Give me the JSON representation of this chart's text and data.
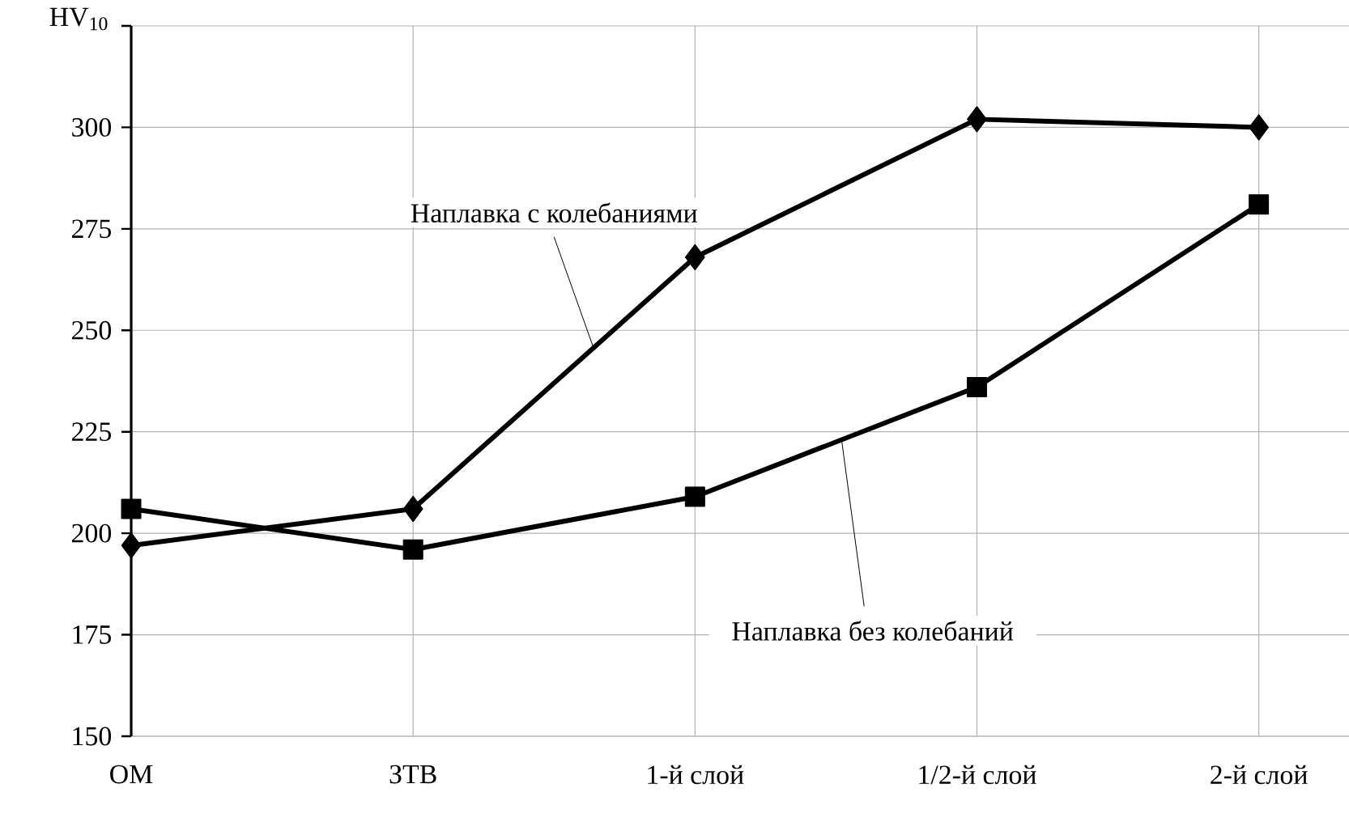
{
  "chart_data": {
    "type": "line",
    "ylabel": "HV$_{10}$",
    "categories": [
      "ОМ",
      "ЗТВ",
      "1-й слой",
      "1/2-й слой",
      "2-й слой"
    ],
    "series": [
      {
        "name": "Наплавка с колебаниями",
        "color": "#000000",
        "marker": "diamond",
        "values": [
          197,
          206,
          268,
          302,
          300
        ]
      },
      {
        "name": "Наплавка без колебаний",
        "color": "#000000",
        "marker": "square",
        "values": [
          206,
          196,
          209,
          236,
          281
        ]
      }
    ],
    "ylim": [
      150,
      325
    ],
    "yticks": [
      150,
      175,
      200,
      225,
      250,
      275,
      300,
      {
        "value": 325,
        "label": null
      }
    ],
    "grid": true,
    "legend": false,
    "line_style": "solid"
  }
}
